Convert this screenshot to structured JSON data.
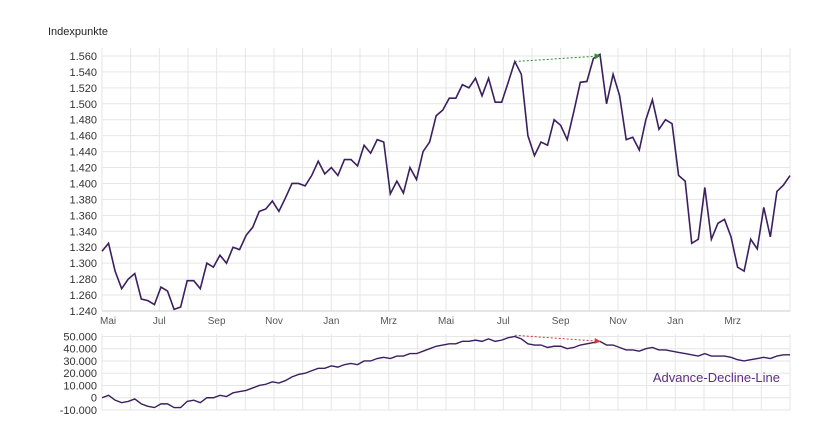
{
  "colors": {
    "line": "#3b1f5e",
    "grid": "#e6e6e6",
    "label_purple": "#5a2d82",
    "arrow_green": "#2e8b2e",
    "arrow_red": "#d43a3a"
  },
  "chart_data": [
    {
      "type": "line",
      "ylabel": "Indexpunkte",
      "ylim": [
        1240,
        1570
      ],
      "yticks": [
        "1.560",
        "1.540",
        "1.520",
        "1.500",
        "1.480",
        "1.460",
        "1.440",
        "1.420",
        "1.400",
        "1.380",
        "1.360",
        "1.340",
        "1.320",
        "1.300",
        "1.280",
        "1.260",
        "1.240"
      ],
      "ytick_values": [
        1560,
        1540,
        1520,
        1500,
        1480,
        1460,
        1440,
        1420,
        1400,
        1380,
        1360,
        1340,
        1320,
        1300,
        1280,
        1260,
        1240
      ],
      "x_labels": [
        "Mai",
        "Jul",
        "Sep",
        "Nov",
        "Jan",
        "Mrz",
        "Mai",
        "Jul",
        "Sep",
        "Nov",
        "Jan",
        "Mrz"
      ],
      "grid": true,
      "series": [
        {
          "values": [
            1315,
            1325,
            1290,
            1268,
            1280,
            1287,
            1255,
            1253,
            1248,
            1270,
            1265,
            1242,
            1245,
            1278,
            1278,
            1268,
            1300,
            1295,
            1310,
            1300,
            1320,
            1317,
            1335,
            1345,
            1365,
            1368,
            1378,
            1365,
            1382,
            1400,
            1400,
            1397,
            1410,
            1428,
            1412,
            1420,
            1410,
            1430,
            1430,
            1422,
            1448,
            1438,
            1455,
            1452,
            1387,
            1403,
            1388,
            1420,
            1405,
            1440,
            1452,
            1485,
            1492,
            1507,
            1507,
            1524,
            1520,
            1532,
            1510,
            1532,
            1502,
            1502,
            1527,
            1553,
            1537,
            1460,
            1435,
            1452,
            1448,
            1480,
            1473,
            1455,
            1490,
            1527,
            1528,
            1557,
            1562,
            1500,
            1537,
            1510,
            1455,
            1458,
            1442,
            1480,
            1505,
            1468,
            1480,
            1475,
            1410,
            1403,
            1325,
            1330,
            1395,
            1330,
            1350,
            1355,
            1333,
            1295,
            1290,
            1330,
            1318,
            1370,
            1333,
            1390,
            1398,
            1410
          ]
        }
      ],
      "annotations": [
        {
          "type": "arrow",
          "color": "green",
          "from_index": 63,
          "from_value": 1553,
          "to_index": 76,
          "to_value": 1560
        }
      ]
    },
    {
      "type": "line",
      "label": "Advance-Decline-Line",
      "ylim": [
        -10000,
        52000
      ],
      "yticks": [
        "50.000",
        "40.000",
        "30.000",
        "20.000",
        "10.000",
        "0",
        "-10.000"
      ],
      "ytick_values": [
        50000,
        40000,
        30000,
        20000,
        10000,
        0,
        -10000
      ],
      "grid": true,
      "series": [
        {
          "values": [
            0,
            2000,
            -2000,
            -4000,
            -3000,
            -1000,
            -5000,
            -7000,
            -8000,
            -5000,
            -5000,
            -8000,
            -8000,
            -3000,
            -2000,
            -4000,
            0,
            0,
            2000,
            1000,
            4000,
            5000,
            6000,
            8000,
            10000,
            11000,
            13000,
            12000,
            14000,
            17000,
            19000,
            20000,
            22000,
            24000,
            24000,
            26000,
            25000,
            27000,
            28000,
            27000,
            30000,
            30000,
            32000,
            33000,
            32000,
            34000,
            34000,
            36000,
            36000,
            38000,
            40000,
            42000,
            43000,
            44000,
            44000,
            46000,
            46000,
            47000,
            46000,
            48000,
            46000,
            47000,
            49000,
            50000,
            48000,
            44000,
            43000,
            43000,
            41000,
            42000,
            42000,
            40000,
            41000,
            43000,
            44000,
            45000,
            46000,
            43000,
            43000,
            41000,
            39000,
            39000,
            38000,
            40000,
            41000,
            39000,
            39000,
            38000,
            37000,
            36000,
            35000,
            34000,
            36000,
            34000,
            34000,
            34000,
            33000,
            31000,
            30000,
            31000,
            32000,
            33000,
            32000,
            34000,
            35000,
            35000
          ]
        }
      ],
      "annotations": [
        {
          "type": "arrow",
          "color": "red",
          "from_index": 63,
          "from_value": 51000,
          "to_index": 76,
          "to_value": 46000
        }
      ]
    }
  ]
}
